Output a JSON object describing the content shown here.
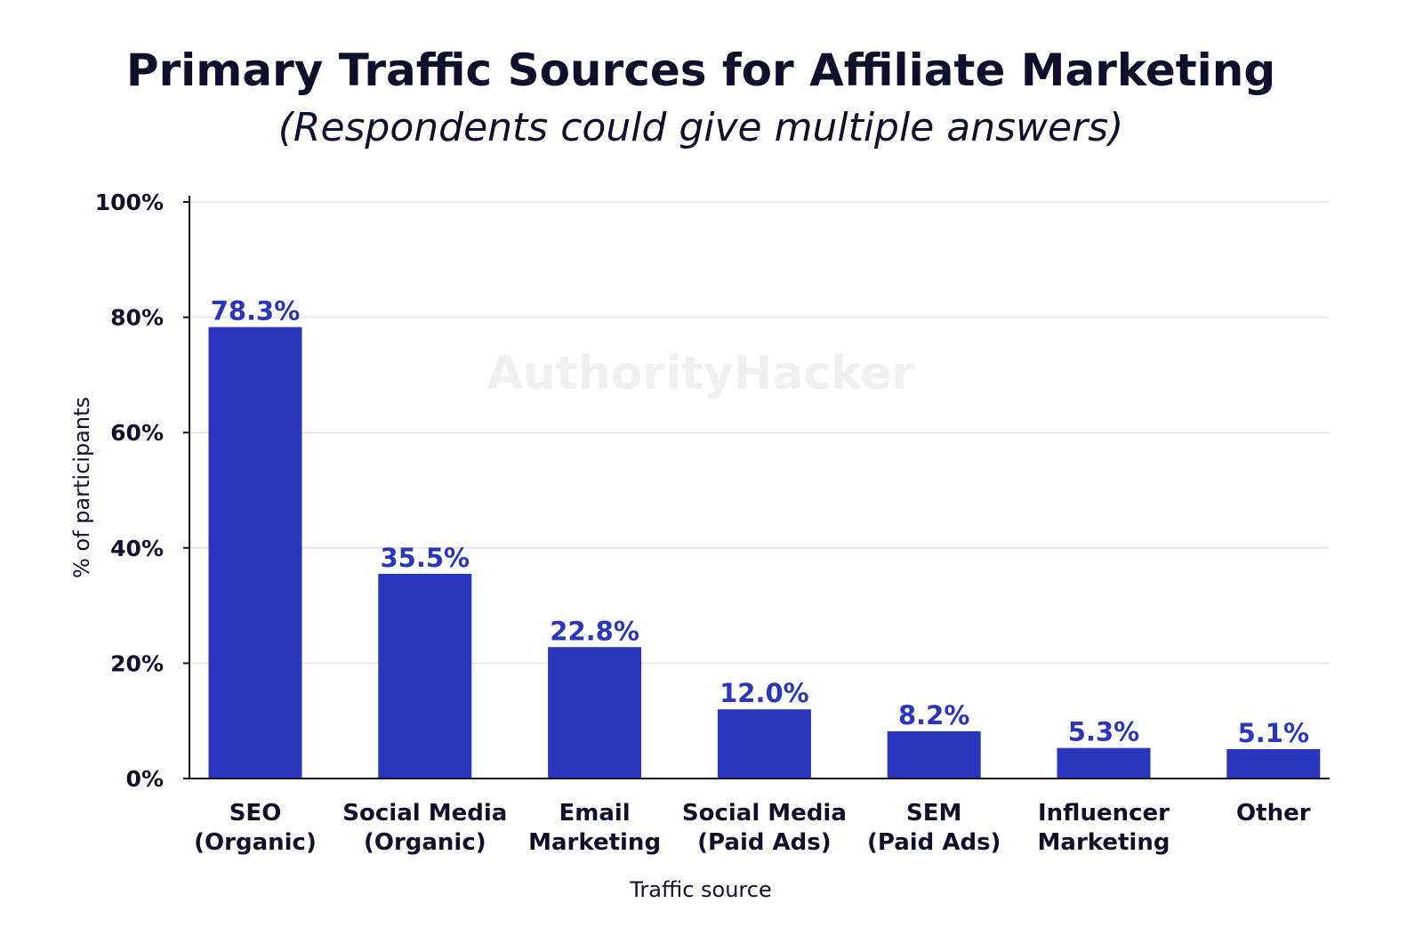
{
  "chart_data": {
    "type": "bar",
    "title": "Primary Traffic Sources for Affiliate Marketing",
    "subtitle": "(Respondents could give multiple answers)",
    "xlabel": "Traffic source",
    "ylabel": "% of participants",
    "ylim": [
      0,
      100
    ],
    "yticks": [
      "0%",
      "20%",
      "40%",
      "60%",
      "80%",
      "100%"
    ],
    "grid": true,
    "categories": [
      [
        "SEO",
        "(Organic)"
      ],
      [
        "Social Media",
        "(Organic)"
      ],
      [
        "Email",
        "Marketing"
      ],
      [
        "Social Media",
        "(Paid Ads)"
      ],
      [
        "SEM",
        "(Paid Ads)"
      ],
      [
        "Influencer",
        "Marketing"
      ],
      [
        "Other"
      ]
    ],
    "values": [
      78.3,
      35.5,
      22.8,
      12.0,
      8.2,
      5.3,
      5.1
    ],
    "data_labels": [
      "78.3%",
      "35.5%",
      "22.8%",
      "12.0%",
      "8.2%",
      "5.3%",
      "5.1%"
    ],
    "watermark": "AuthorityHacker",
    "colors": {
      "bar": "#2a36bb",
      "label": "#2a36bb",
      "text": "#0d0f2b",
      "grid": "#e3e3e6"
    }
  }
}
